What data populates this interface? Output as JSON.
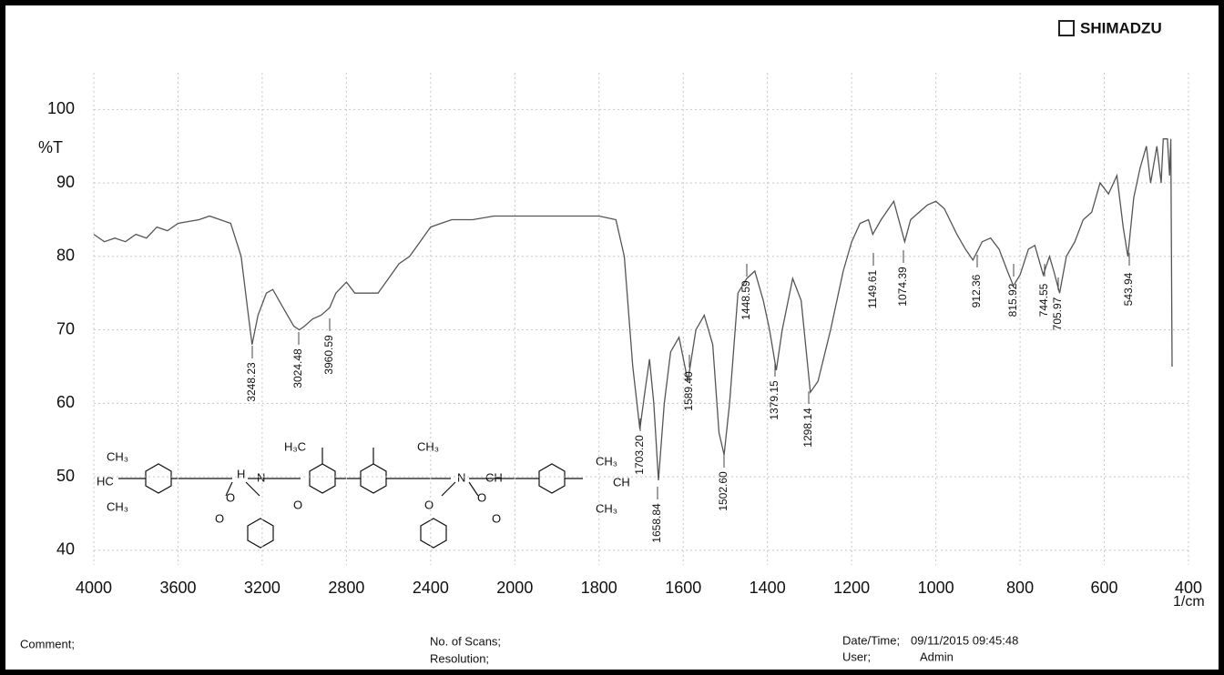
{
  "brand": "SHIMADZU",
  "chart_data": {
    "type": "line",
    "y_label": "%T",
    "x_label": "1/cm",
    "xlim": [
      4000,
      400
    ],
    "xticks": [
      4000,
      3600,
      3200,
      2800,
      2400,
      2000,
      1800,
      1600,
      1400,
      1200,
      1000,
      800,
      600,
      400
    ],
    "ylim": [
      38,
      105
    ],
    "yticks": [
      40,
      50,
      60,
      70,
      80,
      90,
      100
    ],
    "grid": true,
    "series": [
      {
        "color": "#555555",
        "x": [
          4000,
          3950,
          3900,
          3850,
          3800,
          3750,
          3700,
          3650,
          3600,
          3500,
          3450,
          3400,
          3350,
          3300,
          3270,
          3248,
          3220,
          3180,
          3150,
          3100,
          3050,
          3024,
          3000,
          2960,
          2920,
          2880,
          2850,
          2800,
          2760,
          2700,
          2650,
          2600,
          2550,
          2500,
          2450,
          2400,
          2350,
          2300,
          2200,
          2100,
          2000,
          1900,
          1800,
          1760,
          1740,
          1720,
          1703,
          1690,
          1680,
          1670,
          1659,
          1645,
          1630,
          1610,
          1589,
          1570,
          1550,
          1530,
          1515,
          1503,
          1490,
          1470,
          1449,
          1430,
          1410,
          1395,
          1379,
          1365,
          1340,
          1320,
          1298,
          1280,
          1250,
          1220,
          1200,
          1180,
          1160,
          1150,
          1130,
          1100,
          1074,
          1060,
          1040,
          1020,
          1000,
          980,
          950,
          930,
          912,
          890,
          870,
          850,
          830,
          816,
          800,
          780,
          765,
          745,
          730,
          720,
          706,
          690,
          670,
          650,
          630,
          610,
          590,
          570,
          555,
          544,
          530,
          515,
          500,
          490,
          475,
          465,
          460,
          450,
          445,
          442,
          439
        ],
        "values": [
          83,
          82,
          82.5,
          82,
          83,
          82.5,
          84,
          83.5,
          84.5,
          85,
          85.5,
          85,
          84.5,
          80,
          73,
          68,
          72,
          75,
          75.5,
          73,
          70.5,
          70,
          70.5,
          71.5,
          72,
          73,
          75,
          76.5,
          75,
          75,
          75,
          77,
          79,
          80,
          82,
          84,
          84.5,
          85,
          85,
          85.5,
          85.5,
          85.5,
          85.5,
          85,
          80,
          65,
          56.5,
          62,
          66,
          60,
          49.5,
          60,
          67,
          69,
          63,
          70,
          72,
          68,
          56,
          53,
          60,
          75,
          77,
          78,
          74,
          70,
          64.5,
          70,
          77,
          74,
          61.5,
          63,
          70,
          78,
          82,
          84.5,
          85,
          83,
          85,
          87.5,
          82,
          85,
          86,
          87,
          87.5,
          86.5,
          83,
          81,
          79.5,
          82,
          82.5,
          81,
          78,
          76,
          77.5,
          81,
          81.5,
          77.5,
          80,
          78,
          75,
          80,
          82,
          85,
          86,
          90,
          88.5,
          91,
          84,
          80,
          88,
          92,
          95,
          90,
          95,
          90,
          96,
          96,
          91,
          96,
          65
        ]
      }
    ],
    "annotations": [
      "3248.23",
      "3024.48",
      "3960.59",
      "1703.20",
      "1658.84",
      "1589.40",
      "1502.60",
      "1448.59",
      "1379.15",
      "1298.14",
      "1149.61",
      "1074.39",
      "912.36",
      "815.92",
      "744.55",
      "705.97",
      "543.94"
    ]
  },
  "structure_labels": [
    "CH₃",
    "HC",
    "CH₃",
    "H",
    "N",
    "O",
    "O",
    "O",
    "H₃C",
    "CH₃",
    "N",
    "CH",
    "O",
    "O",
    "O",
    "CH",
    "CH₃",
    "CH₃"
  ],
  "footer": {
    "comment": "Comment;",
    "scans": "No. of Scans;",
    "resolution": "Resolution;",
    "date_label": "Date/Time;",
    "date": "09/11/2015 09:45:48",
    "user_label": "User;",
    "user": "Admin"
  }
}
